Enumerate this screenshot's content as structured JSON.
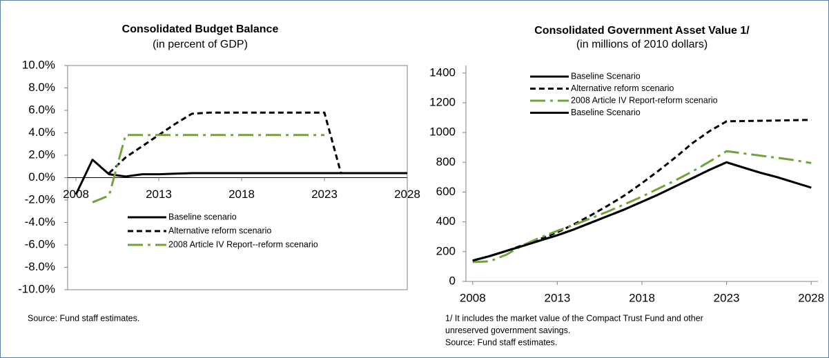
{
  "chart_data": [
    {
      "type": "line",
      "title": "Consolidated Budget Balance",
      "subtitle": "(in percent of GDP)",
      "x": [
        2008,
        2009,
        2010,
        2011,
        2012,
        2013,
        2014,
        2015,
        2016,
        2017,
        2018,
        2019,
        2020,
        2021,
        2022,
        2023,
        2024,
        2025,
        2026,
        2027,
        2028
      ],
      "xlim": [
        2007.5,
        2028
      ],
      "xticks": [
        2008,
        2013,
        2018,
        2023,
        2028
      ],
      "ylim": [
        -10,
        10
      ],
      "yticks": [
        {
          "value": -10,
          "label": "-10.0%"
        },
        {
          "value": -8,
          "label": "-8.0%"
        },
        {
          "value": -6,
          "label": "-6.0%"
        },
        {
          "value": -4,
          "label": "-4.0%"
        },
        {
          "value": -2,
          "label": "-2.0%"
        },
        {
          "value": 0,
          "label": "0.0%"
        },
        {
          "value": 2,
          "label": "2.0%"
        },
        {
          "value": 4,
          "label": "4.0%"
        },
        {
          "value": 6,
          "label": "6.0%"
        },
        {
          "value": 8,
          "label": "8.0%"
        },
        {
          "value": 10,
          "label": "10.0%"
        }
      ],
      "series": [
        {
          "name": "Baseline scenario",
          "color": "#000000",
          "dash": "solid",
          "values": [
            -1.5,
            1.6,
            0.3,
            0.1,
            0.3,
            0.3,
            0.35,
            0.4,
            0.4,
            0.4,
            0.4,
            0.4,
            0.4,
            0.4,
            0.4,
            0.4,
            0.4,
            0.4,
            0.4,
            0.4,
            0.4
          ]
        },
        {
          "name": "Alternative reform scenario",
          "color": "#000000",
          "dash": "dash",
          "values": [
            null,
            null,
            0.4,
            1.8,
            2.8,
            3.8,
            4.8,
            5.7,
            5.8,
            5.8,
            5.8,
            5.8,
            5.8,
            5.8,
            5.8,
            5.8,
            0.4,
            0.4,
            0.4,
            0.4,
            0.4
          ]
        },
        {
          "name": "2008 Article IV Report--reform scenario",
          "color": "#72a23c",
          "dash": "dashdot",
          "values": [
            null,
            -2.2,
            -1.6,
            3.8,
            3.8,
            3.8,
            3.8,
            3.8,
            3.8,
            3.8,
            3.8,
            3.8,
            3.8,
            3.8,
            3.8,
            3.8,
            null,
            null,
            null,
            null,
            null
          ]
        }
      ],
      "frame": "box",
      "legend": "bottom-left",
      "notes": [
        "Source: Fund staff estimates."
      ]
    },
    {
      "type": "line",
      "title": "Consolidated Government Asset Value 1/",
      "subtitle": "(in millions of 2010 dollars)",
      "x": [
        2008,
        2009,
        2010,
        2011,
        2012,
        2013,
        2014,
        2015,
        2016,
        2017,
        2018,
        2019,
        2020,
        2021,
        2022,
        2023,
        2024,
        2025,
        2026,
        2027,
        2028
      ],
      "xlim": [
        2007.6,
        2028.4
      ],
      "xticks": [
        2008,
        2013,
        2018,
        2023,
        2028
      ],
      "ylim": [
        0,
        1450
      ],
      "yticks": [
        0,
        200,
        400,
        600,
        800,
        1000,
        1200,
        1400
      ],
      "series": [
        {
          "name": "Baseline Scenario",
          "color": "#000000",
          "dash": "solid",
          "values": [
            140,
            170,
            205,
            240,
            275,
            310,
            350,
            395,
            440,
            485,
            535,
            585,
            640,
            695,
            750,
            800,
            765,
            730,
            700,
            665,
            630
          ]
        },
        {
          "name": "Alternative reform scenario",
          "color": "#000000",
          "dash": "dash",
          "values": [
            140,
            170,
            205,
            245,
            285,
            330,
            385,
            445,
            510,
            580,
            660,
            745,
            835,
            930,
            1010,
            1075,
            1077,
            1079,
            1081,
            1083,
            1085
          ]
        },
        {
          "name": "2008 Article IV Report-reform scenario",
          "color": "#72a23c",
          "dash": "dashdot",
          "values": [
            130,
            135,
            180,
            245,
            295,
            340,
            380,
            425,
            470,
            520,
            570,
            625,
            680,
            740,
            805,
            875,
            860,
            845,
            830,
            815,
            795
          ]
        },
        {
          "name": "Baseline Scenario",
          "color": "#000000",
          "dash": "solid",
          "values": [
            140,
            170,
            205,
            240,
            275,
            310,
            350,
            395,
            440,
            485,
            535,
            585,
            640,
            695,
            750,
            800,
            765,
            730,
            700,
            665,
            630
          ]
        }
      ],
      "frame": "axes",
      "legend": "top-left",
      "notes": [
        "1/ It includes the market value of the Compact Trust Fund and other",
        "unreserved government savings.",
        "Source: Fund staff estimates."
      ]
    }
  ]
}
